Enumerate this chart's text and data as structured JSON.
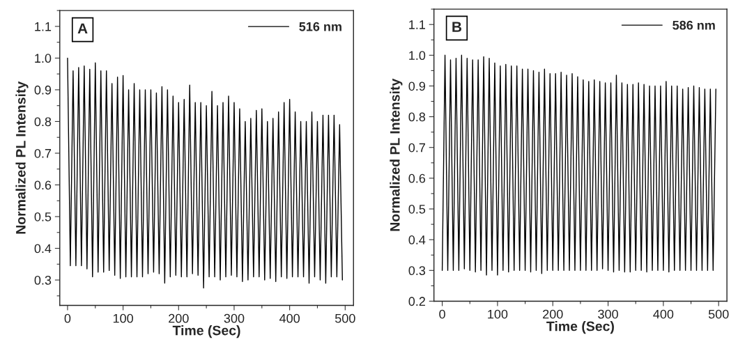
{
  "chart_data": [
    {
      "type": "line",
      "xlabel": "Time (Sec)",
      "ylabel": "Normalized PL Intensity",
      "annotations": [
        "A"
      ],
      "legend": "top right",
      "grid": false,
      "xlim": [
        -14,
        515
      ],
      "xticks": [
        0,
        100,
        200,
        300,
        400,
        500
      ],
      "ylim": [
        0.22,
        1.15
      ],
      "yticks": [
        0.3,
        0.4,
        0.5,
        0.6,
        0.7,
        0.8,
        0.9,
        {
          "value": 1,
          "label": "1.0"
        },
        1.1
      ],
      "series": [
        {
          "name": "516 nm",
          "color": "#000000",
          "x": [
            0,
            5,
            10,
            15,
            20,
            25,
            30,
            35,
            40,
            45,
            50,
            55,
            60,
            65,
            70,
            75,
            80,
            85,
            90,
            95,
            100,
            105,
            110,
            115,
            120,
            125,
            130,
            135,
            140,
            145,
            150,
            155,
            160,
            165,
            170,
            175,
            180,
            185,
            190,
            195,
            200,
            205,
            210,
            215,
            220,
            225,
            230,
            235,
            240,
            245,
            250,
            255,
            260,
            265,
            270,
            275,
            280,
            285,
            290,
            295,
            300,
            305,
            310,
            315,
            320,
            325,
            330,
            335,
            340,
            345,
            350,
            355,
            360,
            365,
            370,
            375,
            380,
            385,
            390,
            395,
            400,
            405,
            410,
            415,
            420,
            425,
            430,
            435,
            440,
            445,
            450,
            455,
            460,
            465,
            470,
            475,
            480,
            485,
            490,
            495
          ],
          "values": [
            1.0,
            0.345,
            0.96,
            0.345,
            0.97,
            0.345,
            0.975,
            0.335,
            0.965,
            0.31,
            0.985,
            0.325,
            0.96,
            0.325,
            0.96,
            0.33,
            0.92,
            0.315,
            0.94,
            0.305,
            0.945,
            0.31,
            0.9,
            0.31,
            0.92,
            0.31,
            0.9,
            0.31,
            0.9,
            0.32,
            0.9,
            0.325,
            0.89,
            0.32,
            0.91,
            0.29,
            0.9,
            0.31,
            0.88,
            0.315,
            0.86,
            0.31,
            0.87,
            0.31,
            0.915,
            0.32,
            0.86,
            0.315,
            0.86,
            0.275,
            0.85,
            0.31,
            0.895,
            0.31,
            0.85,
            0.3,
            0.86,
            0.31,
            0.88,
            0.315,
            0.86,
            0.31,
            0.84,
            0.295,
            0.8,
            0.3,
            0.81,
            0.31,
            0.835,
            0.31,
            0.84,
            0.3,
            0.8,
            0.305,
            0.81,
            0.295,
            0.83,
            0.31,
            0.86,
            0.305,
            0.87,
            0.31,
            0.83,
            0.31,
            0.8,
            0.31,
            0.8,
            0.29,
            0.83,
            0.31,
            0.8,
            0.3,
            0.82,
            0.29,
            0.82,
            0.31,
            0.82,
            0.31,
            0.79,
            0.3
          ]
        }
      ]
    },
    {
      "type": "line",
      "xlabel": "Time (Sec)",
      "ylabel": "Normalized PL Intensity",
      "annotations": [
        "B"
      ],
      "legend": "top right",
      "grid": false,
      "xlim": [
        -15,
        515
      ],
      "xticks": [
        0,
        100,
        200,
        300,
        400,
        500
      ],
      "ylim": [
        0.2,
        1.15
      ],
      "yticks": [
        0.2,
        0.3,
        0.4,
        0.5,
        0.6,
        0.7,
        0.8,
        0.9,
        {
          "value": 1,
          "label": "1.0"
        },
        1.1
      ],
      "series": [
        {
          "name": "586 nm",
          "color": "#000000",
          "x": [
            0,
            5,
            10,
            15,
            20,
            25,
            30,
            35,
            40,
            45,
            50,
            55,
            60,
            65,
            70,
            75,
            80,
            85,
            90,
            95,
            100,
            105,
            110,
            115,
            120,
            125,
            130,
            135,
            140,
            145,
            150,
            155,
            160,
            165,
            170,
            175,
            180,
            185,
            190,
            195,
            200,
            205,
            210,
            215,
            220,
            225,
            230,
            235,
            240,
            245,
            250,
            255,
            260,
            265,
            270,
            275,
            280,
            285,
            290,
            295,
            300,
            305,
            310,
            315,
            320,
            325,
            330,
            335,
            340,
            345,
            350,
            355,
            360,
            365,
            370,
            375,
            380,
            385,
            390,
            395,
            400,
            405,
            410,
            415,
            420,
            425,
            430,
            435,
            440,
            445,
            450,
            455,
            460,
            465,
            470,
            475,
            480,
            485,
            490,
            495
          ],
          "values": [
            0.3,
            1.0,
            0.3,
            0.985,
            0.3,
            0.99,
            0.3,
            1.0,
            0.305,
            0.99,
            0.3,
            0.985,
            0.295,
            0.985,
            0.3,
            0.995,
            0.285,
            0.99,
            0.3,
            0.975,
            0.285,
            0.965,
            0.3,
            0.97,
            0.295,
            0.965,
            0.3,
            0.965,
            0.3,
            0.955,
            0.3,
            0.955,
            0.295,
            0.95,
            0.3,
            0.945,
            0.29,
            0.955,
            0.3,
            0.94,
            0.3,
            0.94,
            0.3,
            0.945,
            0.3,
            0.935,
            0.3,
            0.94,
            0.3,
            0.93,
            0.3,
            0.92,
            0.3,
            0.915,
            0.3,
            0.92,
            0.3,
            0.915,
            0.305,
            0.91,
            0.3,
            0.91,
            0.295,
            0.935,
            0.3,
            0.91,
            0.295,
            0.905,
            0.295,
            0.905,
            0.3,
            0.91,
            0.3,
            0.905,
            0.295,
            0.9,
            0.3,
            0.9,
            0.3,
            0.9,
            0.3,
            0.915,
            0.295,
            0.9,
            0.3,
            0.9,
            0.3,
            0.89,
            0.3,
            0.895,
            0.3,
            0.9,
            0.3,
            0.895,
            0.3,
            0.89,
            0.3,
            0.89,
            0.3,
            0.89
          ]
        }
      ]
    }
  ]
}
